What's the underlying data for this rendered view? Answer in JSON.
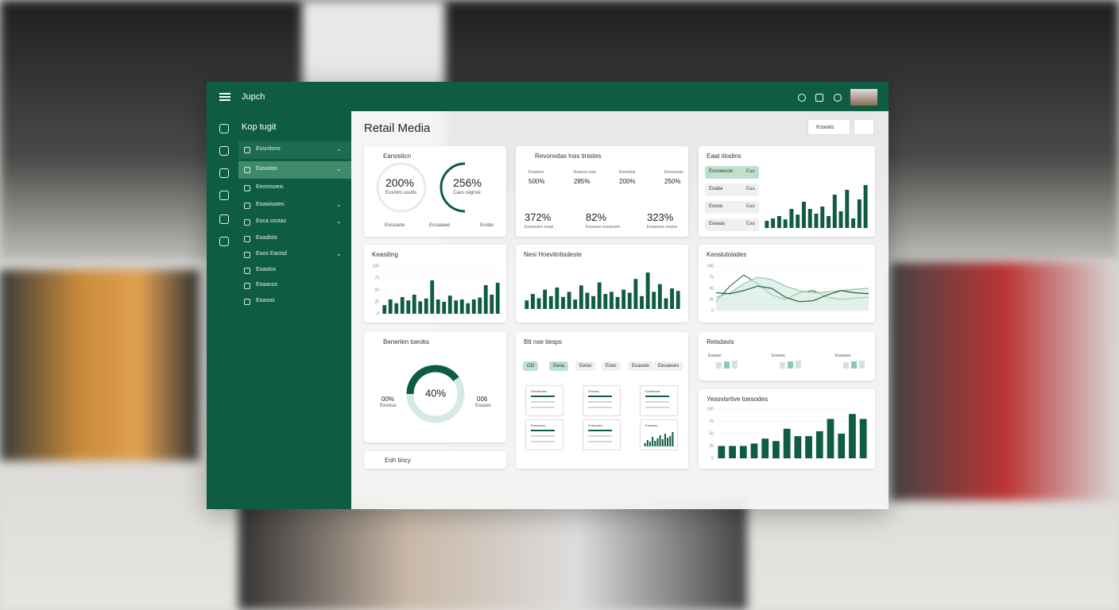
{
  "header": {
    "brand": "Jupch"
  },
  "sidebar": {
    "title": "Kop tugit",
    "items": [
      "Eusnitons",
      "Eusoitos",
      "Eeomsoeis",
      "Eoawisates",
      "Eoca osstas",
      "Eoadists",
      "Eoos Eacisd",
      "Eoaolos",
      "Eoaacos",
      "Eoaoos"
    ]
  },
  "page": {
    "title": "Retail Media",
    "filter": "Kowais"
  },
  "overview": {
    "title": "Eanosticn",
    "gauges": [
      {
        "value": "200%",
        "label": "Eusinirs uoutis"
      },
      {
        "value": "256%",
        "label": "Caxs cegrsie"
      }
    ],
    "footer": [
      "Eonsaete",
      "Eosaiaiee",
      "Eoiate"
    ]
  },
  "metrics": {
    "title": "Revonvdas hsis tinistes",
    "items": [
      {
        "label": "Eoaisesi",
        "value": "500%"
      },
      {
        "label": "Eoseoa eaia",
        "value": "285%"
      },
      {
        "label": "Eosoiotsi",
        "value": "200%"
      },
      {
        "label": "Eonsoaste",
        "value": "250%"
      },
      {
        "label": "Eoasoaiss eoasi",
        "value": "372%"
      },
      {
        "label": "Eoasaee eosaisses",
        "value": "82%"
      },
      {
        "label": "Eoasoees eoaiss",
        "value": "323%"
      }
    ]
  },
  "ranking": {
    "title": "Eaat iitodins",
    "rows": [
      {
        "label": "Esnoeesoe",
        "value": "Eaa"
      },
      {
        "label": "Eoaba",
        "value": "Eaa"
      },
      {
        "label": "Eosoa",
        "value": "Eaa"
      },
      {
        "label": "Eoeaas",
        "value": "Eaa"
      }
    ],
    "chart": {
      "type": "bar",
      "values": [
        15,
        20,
        25,
        18,
        40,
        28,
        55,
        40,
        30,
        45,
        25,
        70,
        35,
        80,
        20,
        60,
        90
      ],
      "ylim": [
        0,
        100
      ],
      "color": "#0f5c45"
    }
  },
  "keasiting": {
    "title": "Keasiting",
    "chart": {
      "type": "bar",
      "values": [
        18,
        30,
        22,
        35,
        28,
        40,
        26,
        32,
        70,
        30,
        25,
        38,
        28,
        30,
        22,
        30,
        34,
        60,
        40,
        65
      ],
      "ylim": [
        0,
        100
      ],
      "yticks": [
        0,
        25,
        50,
        75,
        100
      ],
      "color": "#0f5c45"
    }
  },
  "nesi": {
    "title": "Nesi Hoevitntisdeste",
    "chart": {
      "type": "bar",
      "values": [
        20,
        35,
        25,
        45,
        30,
        50,
        28,
        40,
        22,
        55,
        38,
        30,
        62,
        35,
        40,
        28,
        45,
        38,
        70,
        30,
        85,
        40,
        58,
        25,
        48,
        42
      ],
      "ylim": [
        0,
        100
      ],
      "color": "#0f5c45"
    }
  },
  "trend": {
    "title": "Keoslutoiades",
    "chart": {
      "type": "line",
      "ylim": [
        0,
        100
      ],
      "yticks": [
        0,
        25,
        50,
        75,
        100
      ],
      "series": [
        {
          "color": "#2e7d5b",
          "values": [
            20,
            55,
            80,
            60,
            35,
            25,
            40,
            45,
            30,
            25,
            28,
            30
          ]
        },
        {
          "color": "#8fc9a9",
          "values": [
            30,
            40,
            60,
            75,
            70,
            55,
            45,
            40,
            42,
            45,
            48,
            50
          ]
        },
        {
          "color": "#1e5e45",
          "values": [
            40,
            38,
            45,
            55,
            50,
            30,
            20,
            22,
            35,
            45,
            40,
            38
          ]
        }
      ]
    }
  },
  "donutCard": {
    "title": "Benerlen toeoks",
    "left": {
      "value": "00%",
      "label": "Eeoosa"
    },
    "right": {
      "value": "006",
      "label": "Eoases"
    },
    "chart": {
      "type": "donut",
      "value": 40,
      "label": "40%",
      "color": "#0f5c45"
    }
  },
  "filters": {
    "title": "Btt nse tiesps",
    "pills": [
      "OO",
      "Eeoa",
      "Eeioo",
      "Eoes",
      "Eoaosie",
      "Eesaeses"
    ],
    "panels": [
      "Eesaeeaes",
      "Eeoaas",
      "Eesaeioes",
      "Eaeosaes",
      "Eeaaoses",
      "Eoasass"
    ],
    "chart": {
      "type": "bar",
      "values": [
        20,
        40,
        30,
        60,
        35,
        50,
        70,
        45,
        80,
        55,
        65,
        90
      ],
      "ylim": [
        0,
        100
      ],
      "color": "#0f5c45"
    }
  },
  "relsdavis": {
    "title": "Relsdavis",
    "items": [
      "Eoasas",
      "Eoeass",
      "Eoasaes"
    ]
  },
  "yesov": {
    "title": "Yesovisrtive toesodes",
    "chart": {
      "type": "bar",
      "values": [
        25,
        25,
        25,
        30,
        40,
        35,
        60,
        45,
        45,
        55,
        80,
        50,
        90,
        80
      ],
      "ylim": [
        0,
        100
      ],
      "yticks": [
        0,
        25,
        50,
        75,
        100
      ],
      "color": "#0f5c45"
    }
  },
  "small": {
    "title": "Eoh tincy"
  }
}
